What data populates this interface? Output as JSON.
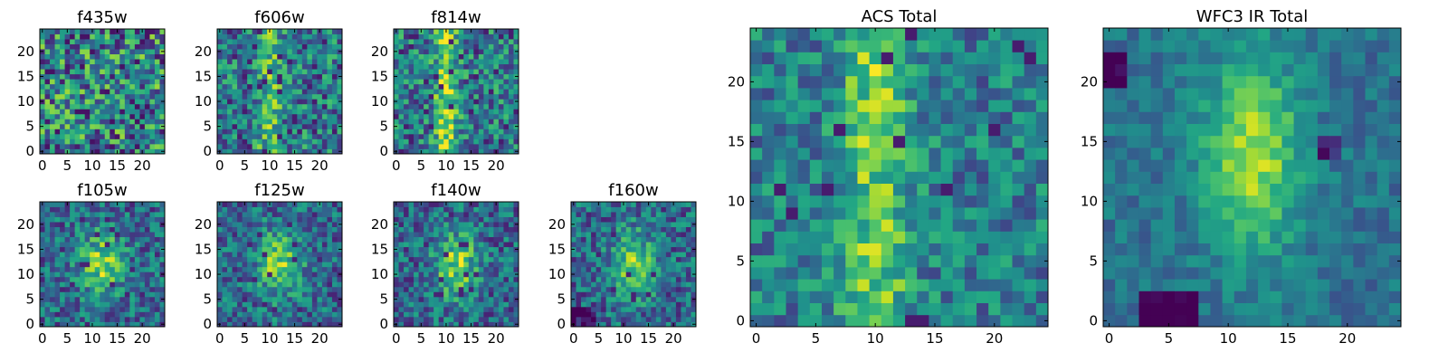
{
  "chart_data": [
    {
      "type": "heatmap",
      "title": "f435w",
      "xlim": [
        -0.5,
        24.5
      ],
      "ylim": [
        -0.5,
        24.5
      ],
      "xticks": [
        0,
        5,
        10,
        15,
        20
      ],
      "yticks": [
        0,
        5,
        10,
        15,
        20
      ],
      "grid": false,
      "colormap": "viridis",
      "profile": "noise",
      "seed": 11
    },
    {
      "type": "heatmap",
      "title": "f606w",
      "xlim": [
        -0.5,
        24.5
      ],
      "ylim": [
        -0.5,
        24.5
      ],
      "xticks": [
        0,
        5,
        10,
        15,
        20
      ],
      "yticks": [
        0,
        5,
        10,
        15,
        20
      ],
      "grid": false,
      "colormap": "viridis",
      "profile": "stripe",
      "seed": 23
    },
    {
      "type": "heatmap",
      "title": "f814w",
      "xlim": [
        -0.5,
        24.5
      ],
      "ylim": [
        -0.5,
        24.5
      ],
      "xticks": [
        0,
        5,
        10,
        15,
        20
      ],
      "yticks": [
        0,
        5,
        10,
        15,
        20
      ],
      "grid": false,
      "colormap": "viridis",
      "profile": "stripe_strong",
      "seed": 37
    },
    {
      "type": "heatmap",
      "title": "f105w",
      "xlim": [
        -0.5,
        24.5
      ],
      "ylim": [
        -0.5,
        24.5
      ],
      "xticks": [
        0,
        5,
        10,
        15,
        20
      ],
      "yticks": [
        0,
        5,
        10,
        15,
        20
      ],
      "grid": false,
      "colormap": "viridis",
      "profile": "blob",
      "seed": 41
    },
    {
      "type": "heatmap",
      "title": "f125w",
      "xlim": [
        -0.5,
        24.5
      ],
      "ylim": [
        -0.5,
        24.5
      ],
      "xticks": [
        0,
        5,
        10,
        15,
        20
      ],
      "yticks": [
        0,
        5,
        10,
        15,
        20
      ],
      "grid": false,
      "colormap": "viridis",
      "profile": "blob",
      "seed": 53
    },
    {
      "type": "heatmap",
      "title": "f140w",
      "xlim": [
        -0.5,
        24.5
      ],
      "ylim": [
        -0.5,
        24.5
      ],
      "xticks": [
        0,
        5,
        10,
        15,
        20
      ],
      "yticks": [
        0,
        5,
        10,
        15,
        20
      ],
      "grid": false,
      "colormap": "viridis",
      "profile": "blob",
      "seed": 67
    },
    {
      "type": "heatmap",
      "title": "f160w",
      "xlim": [
        -0.5,
        24.5
      ],
      "ylim": [
        -0.5,
        24.5
      ],
      "xticks": [
        0,
        5,
        10,
        15,
        20
      ],
      "yticks": [
        0,
        5,
        10,
        15,
        20
      ],
      "grid": false,
      "colormap": "viridis",
      "profile": "blob_dark_corner",
      "seed": 79
    },
    {
      "type": "heatmap",
      "title": "ACS Total",
      "xlim": [
        -0.5,
        24.5
      ],
      "ylim": [
        -0.5,
        24.5
      ],
      "xticks": [
        0,
        5,
        10,
        15,
        20
      ],
      "yticks": [
        0,
        5,
        10,
        15,
        20
      ],
      "grid": false,
      "colormap": "viridis",
      "profile": "stripe_total",
      "seed": 97
    },
    {
      "type": "heatmap",
      "title": "WFC3 IR Total",
      "xlim": [
        -0.5,
        24.5
      ],
      "ylim": [
        -0.5,
        24.5
      ],
      "xticks": [
        0,
        5,
        10,
        15,
        20
      ],
      "yticks": [
        0,
        5,
        10,
        15,
        20
      ],
      "grid": false,
      "colormap": "viridis",
      "profile": "blob_total",
      "seed": 131
    }
  ]
}
